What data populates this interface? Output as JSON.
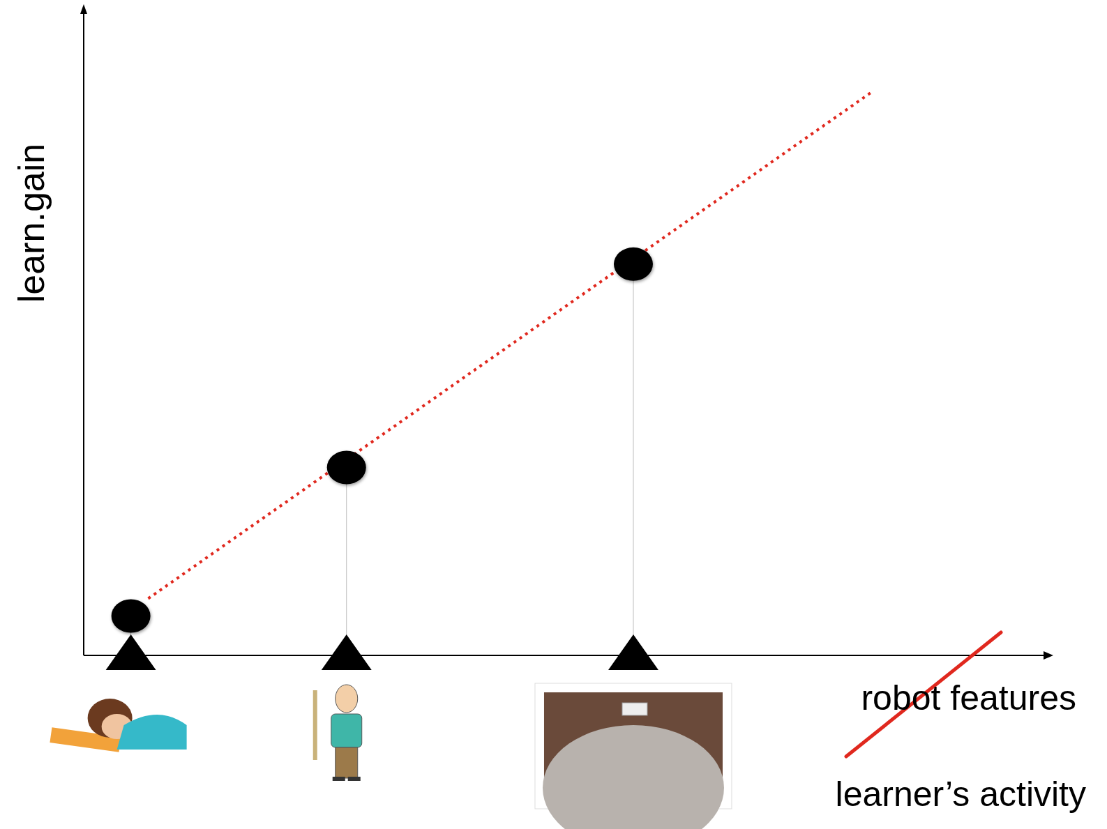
{
  "chart_data": {
    "type": "scatter",
    "y_label": "learn.gain",
    "x_label_crossed_out": "robot features",
    "x_label": "learner’s activity",
    "x": [
      4.9,
      27.3,
      57.1
    ],
    "values": [
      6.1,
      29.1,
      60.6
    ],
    "color": "#000000",
    "marker": "circle",
    "xlim": [
      0,
      100
    ],
    "ylim": [
      0,
      100
    ],
    "tick_labels": false,
    "trend_line": {
      "x": [
        6.7,
        81.9
      ],
      "values": [
        8.8,
        87.3
      ],
      "color": "#e0281e",
      "line_style": "dotted"
    }
  }
}
